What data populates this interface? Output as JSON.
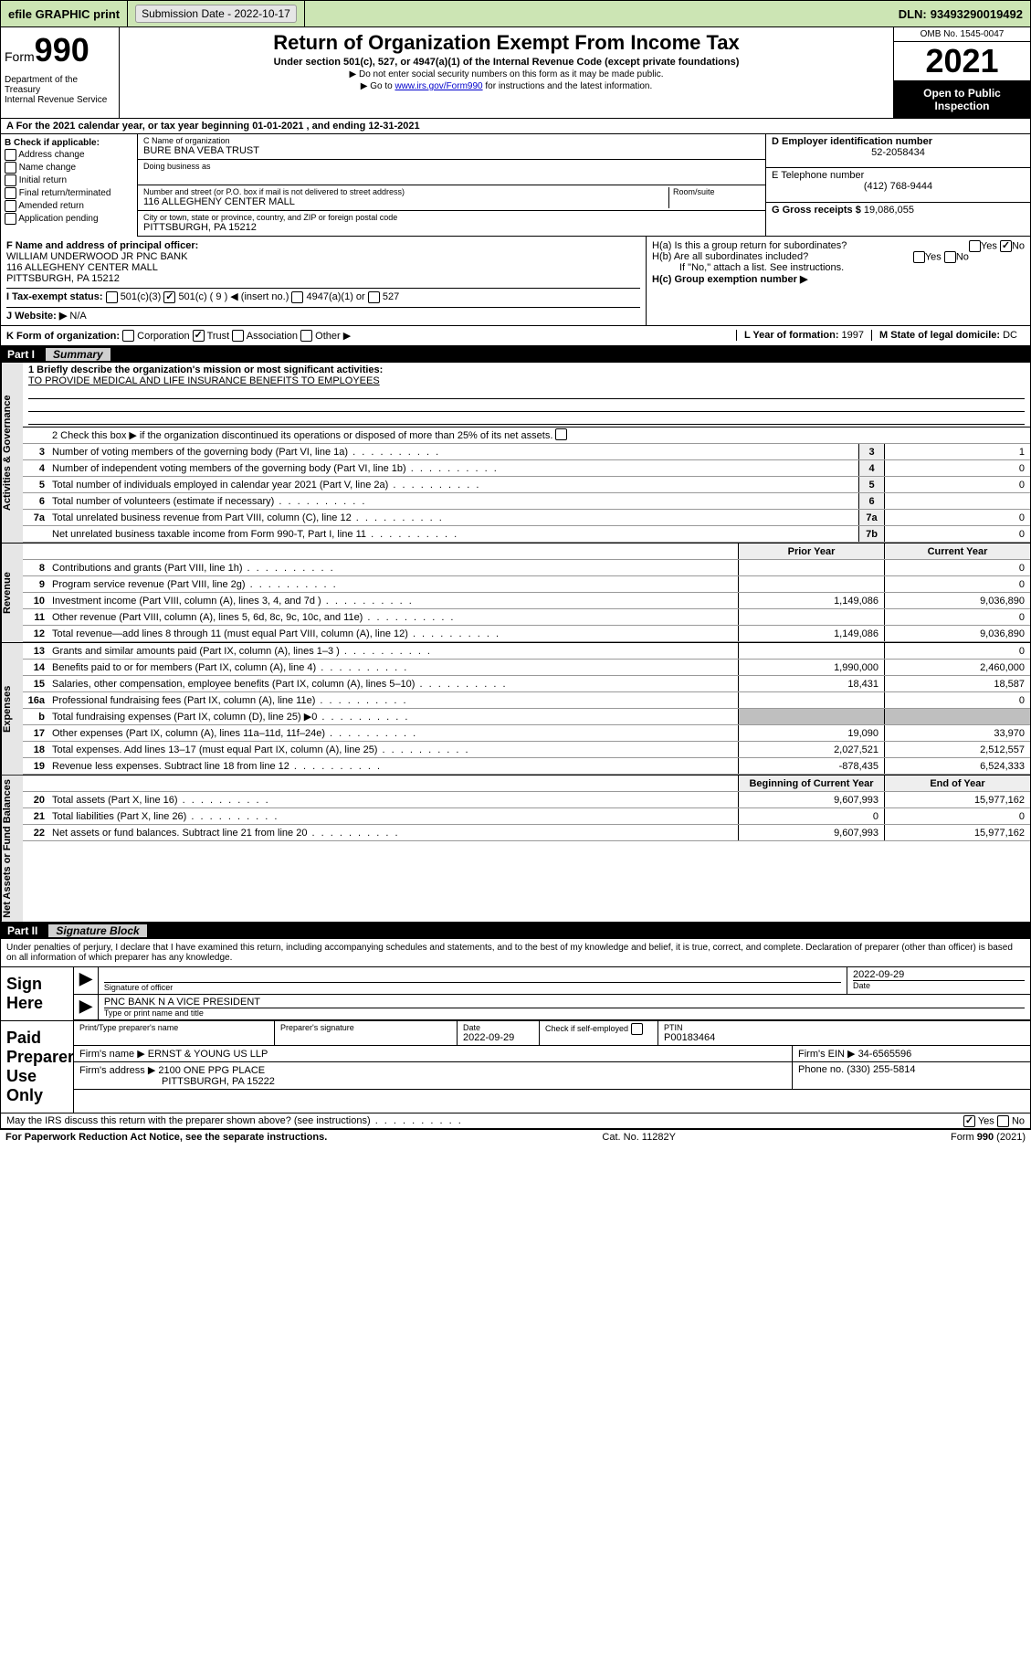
{
  "topbar": {
    "efile": "efile GRAPHIC print",
    "subdate_label": "Submission Date - ",
    "subdate": "2022-10-17",
    "dln_label": "DLN: ",
    "dln": "93493290019492"
  },
  "header": {
    "form_prefix": "Form",
    "form_num": "990",
    "dept": "Department of the Treasury\nInternal Revenue Service",
    "title": "Return of Organization Exempt From Income Tax",
    "sub": "Under section 501(c), 527, or 4947(a)(1) of the Internal Revenue Code (except private foundations)",
    "note1": "▶ Do not enter social security numbers on this form as it may be made public.",
    "note2_pre": "▶ Go to ",
    "note2_link": "www.irs.gov/Form990",
    "note2_post": " for instructions and the latest information.",
    "omb": "OMB No. 1545-0047",
    "taxyear": "2021",
    "inspection": "Open to Public Inspection"
  },
  "a": {
    "text": "A For the 2021 calendar year, or tax year beginning 01-01-2021   , and ending 12-31-2021"
  },
  "b": {
    "label": "B Check if applicable:",
    "items": [
      "Address change",
      "Name change",
      "Initial return",
      "Final return/terminated",
      "Amended return",
      "Application pending"
    ]
  },
  "c": {
    "name_label": "C Name of organization",
    "name": "BURE BNA VEBA TRUST",
    "dba_label": "Doing business as",
    "dba": "",
    "addr_label": "Number and street (or P.O. box if mail is not delivered to street address)",
    "room_label": "Room/suite",
    "addr": "116 ALLEGHENY CENTER MALL",
    "city_label": "City or town, state or province, country, and ZIP or foreign postal code",
    "city": "PITTSBURGH, PA  15212"
  },
  "d": {
    "label": "D Employer identification number",
    "value": "52-2058434"
  },
  "e": {
    "label": "E Telephone number",
    "value": "(412) 768-9444"
  },
  "g": {
    "label": "G Gross receipts $ ",
    "value": "19,086,055"
  },
  "f": {
    "label": "F  Name and address of principal officer:",
    "value": "WILLIAM UNDERWOOD JR PNC BANK\n116 ALLEGHENY CENTER MALL\nPITTSBURGH, PA  15212"
  },
  "h": {
    "a_label": "H(a)  Is this a group return for subordinates?",
    "b_label": "H(b)  Are all subordinates included?",
    "b_note": "If \"No,\" attach a list. See instructions.",
    "c_label": "H(c)  Group exemption number ▶",
    "yes": "Yes",
    "no": "No"
  },
  "i": {
    "label": "I    Tax-exempt status:",
    "opts": [
      "501(c)(3)",
      "501(c) ( 9 ) ◀ (insert no.)",
      "4947(a)(1) or",
      "527"
    ]
  },
  "j": {
    "label": "J    Website: ▶",
    "value": "N/A"
  },
  "k": {
    "label": "K Form of organization:",
    "opts": [
      "Corporation",
      "Trust",
      "Association",
      "Other ▶"
    ],
    "l_label": "L Year of formation: ",
    "l_val": "1997",
    "m_label": "M State of legal domicile: ",
    "m_val": "DC"
  },
  "part1": {
    "num": "Part I",
    "title": "Summary",
    "q1_label": "1  Briefly describe the organization's mission or most significant activities:",
    "q1_val": "TO PROVIDE MEDICAL AND LIFE INSURANCE BENEFITS TO EMPLOYEES",
    "q2": "2   Check this box ▶      if the organization discontinued its operations or disposed of more than 25% of its net assets.",
    "rows_ag": [
      {
        "ln": "3",
        "txt": "Number of voting members of the governing body (Part VI, line 1a)",
        "box": "3",
        "val": "1"
      },
      {
        "ln": "4",
        "txt": "Number of independent voting members of the governing body (Part VI, line 1b)",
        "box": "4",
        "val": "0"
      },
      {
        "ln": "5",
        "txt": "Total number of individuals employed in calendar year 2021 (Part V, line 2a)",
        "box": "5",
        "val": "0"
      },
      {
        "ln": "6",
        "txt": "Total number of volunteers (estimate if necessary)",
        "box": "6",
        "val": ""
      },
      {
        "ln": "7a",
        "txt": "Total unrelated business revenue from Part VIII, column (C), line 12",
        "box": "7a",
        "val": "0"
      },
      {
        "ln": "",
        "txt": "Net unrelated business taxable income from Form 990-T, Part I, line 11",
        "box": "7b",
        "val": "0"
      }
    ],
    "col_prior": "Prior Year",
    "col_current": "Current Year",
    "rows_rev": [
      {
        "ln": "8",
        "txt": "Contributions and grants (Part VIII, line 1h)",
        "prior": "",
        "cur": "0"
      },
      {
        "ln": "9",
        "txt": "Program service revenue (Part VIII, line 2g)",
        "prior": "",
        "cur": "0"
      },
      {
        "ln": "10",
        "txt": "Investment income (Part VIII, column (A), lines 3, 4, and 7d )",
        "prior": "1,149,086",
        "cur": "9,036,890"
      },
      {
        "ln": "11",
        "txt": "Other revenue (Part VIII, column (A), lines 5, 6d, 8c, 9c, 10c, and 11e)",
        "prior": "",
        "cur": "0"
      },
      {
        "ln": "12",
        "txt": "Total revenue—add lines 8 through 11 (must equal Part VIII, column (A), line 12)",
        "prior": "1,149,086",
        "cur": "9,036,890"
      }
    ],
    "rows_exp": [
      {
        "ln": "13",
        "txt": "Grants and similar amounts paid (Part IX, column (A), lines 1–3 )",
        "prior": "",
        "cur": "0"
      },
      {
        "ln": "14",
        "txt": "Benefits paid to or for members (Part IX, column (A), line 4)",
        "prior": "1,990,000",
        "cur": "2,460,000"
      },
      {
        "ln": "15",
        "txt": "Salaries, other compensation, employee benefits (Part IX, column (A), lines 5–10)",
        "prior": "18,431",
        "cur": "18,587"
      },
      {
        "ln": "16a",
        "txt": "Professional fundraising fees (Part IX, column (A), line 11e)",
        "prior": "",
        "cur": "0"
      },
      {
        "ln": "b",
        "txt": "Total fundraising expenses (Part IX, column (D), line 25) ▶0",
        "prior": "shade",
        "cur": "shade"
      },
      {
        "ln": "17",
        "txt": "Other expenses (Part IX, column (A), lines 11a–11d, 11f–24e)",
        "prior": "19,090",
        "cur": "33,970"
      },
      {
        "ln": "18",
        "txt": "Total expenses. Add lines 13–17 (must equal Part IX, column (A), line 25)",
        "prior": "2,027,521",
        "cur": "2,512,557"
      },
      {
        "ln": "19",
        "txt": "Revenue less expenses. Subtract line 18 from line 12",
        "prior": "-878,435",
        "cur": "6,524,333"
      }
    ],
    "col_begin": "Beginning of Current Year",
    "col_end": "End of Year",
    "rows_na": [
      {
        "ln": "20",
        "txt": "Total assets (Part X, line 16)",
        "prior": "9,607,993",
        "cur": "15,977,162"
      },
      {
        "ln": "21",
        "txt": "Total liabilities (Part X, line 26)",
        "prior": "0",
        "cur": "0"
      },
      {
        "ln": "22",
        "txt": "Net assets or fund balances. Subtract line 21 from line 20",
        "prior": "9,607,993",
        "cur": "15,977,162"
      }
    ]
  },
  "tabs": {
    "ag": "Activities & Governance",
    "rev": "Revenue",
    "exp": "Expenses",
    "na": "Net Assets or Fund Balances"
  },
  "part2": {
    "num": "Part II",
    "title": "Signature Block",
    "decl": "Under penalties of perjury, I declare that I have examined this return, including accompanying schedules and statements, and to the best of my knowledge and belief, it is true, correct, and complete. Declaration of preparer (other than officer) is based on all information of which preparer has any knowledge.",
    "sign_here": "Sign Here",
    "sig_of_officer": "Signature of officer",
    "date": "Date",
    "sig_date": "2022-09-29",
    "officer_title": "PNC BANK N A  VICE PRESIDENT",
    "type_name": "Type or print name and title",
    "paid": "Paid Preparer Use Only",
    "prep_name_label": "Print/Type preparer's name",
    "prep_sig_label": "Preparer's signature",
    "prep_date_label": "Date",
    "prep_date": "2022-09-29",
    "self_emp": "Check       if self-employed",
    "ptin_label": "PTIN",
    "ptin": "P00183464",
    "firm_name_label": "Firm's name    ▶ ",
    "firm_name": "ERNST & YOUNG US LLP",
    "firm_ein_label": "Firm's EIN ▶ ",
    "firm_ein": "34-6565596",
    "firm_addr_label": "Firm's address ▶ ",
    "firm_addr": "2100 ONE PPG PLACE",
    "firm_city": "PITTSBURGH, PA  15222",
    "phone_label": "Phone no. ",
    "phone": "(330) 255-5814",
    "discuss": "May the IRS discuss this return with the preparer shown above? (see instructions)"
  },
  "footer": {
    "left": "For Paperwork Reduction Act Notice, see the separate instructions.",
    "mid": "Cat. No. 11282Y",
    "right": "Form 990 (2021)"
  }
}
